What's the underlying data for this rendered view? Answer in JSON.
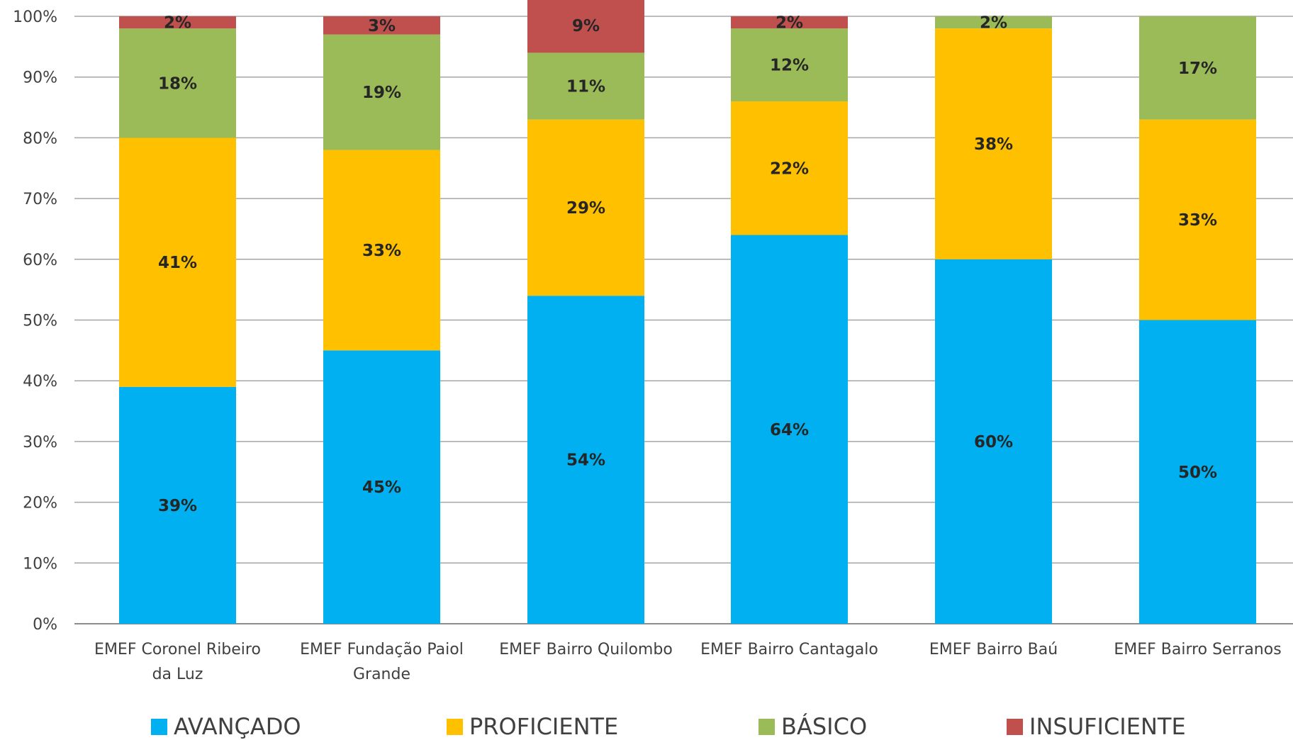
{
  "chart_data": {
    "type": "bar",
    "stacked": true,
    "categories": [
      [
        "EMEF Coronel Ribeiro",
        "da Luz"
      ],
      [
        "EMEF Fundação Paiol",
        "Grande"
      ],
      [
        "EMEF Bairro Quilombo"
      ],
      [
        "EMEF Bairro Cantagalo"
      ],
      [
        "EMEF Bairro Baú"
      ],
      [
        "EMEF Bairro Serranos"
      ]
    ],
    "series": [
      {
        "name": "AVANÇADO",
        "color": "#00b0f0",
        "values": [
          39,
          45,
          54,
          64,
          60,
          50
        ],
        "labels": [
          "39%",
          "45%",
          "54%",
          "64%",
          "60%",
          "50%"
        ]
      },
      {
        "name": "PROFICIENTE",
        "color": "#ffc000",
        "values": [
          41,
          33,
          29,
          22,
          38,
          33
        ],
        "labels": [
          "41%",
          "33%",
          "29%",
          "22%",
          "38%",
          "33%"
        ]
      },
      {
        "name": "BÁSICO",
        "color": "#9bbb59",
        "values": [
          18,
          19,
          11,
          12,
          2,
          17
        ],
        "labels": [
          "18%",
          "19%",
          "11%",
          "12%",
          "2%",
          "17%"
        ]
      },
      {
        "name": "INSUFICIENTE",
        "color": "#c0504d",
        "values": [
          2,
          3,
          9,
          2,
          0,
          0
        ],
        "labels": [
          "2%",
          "3%",
          "9%",
          "2%",
          "",
          ""
        ]
      }
    ],
    "y_ticks": [
      "0%",
      "10%",
      "20%",
      "30%",
      "40%",
      "50%",
      "60%",
      "70%",
      "80%",
      "90%",
      "100%"
    ],
    "ylim": [
      0,
      100
    ],
    "grid": true,
    "legend_position": "bottom",
    "title": "",
    "xlabel": "",
    "ylabel": ""
  }
}
